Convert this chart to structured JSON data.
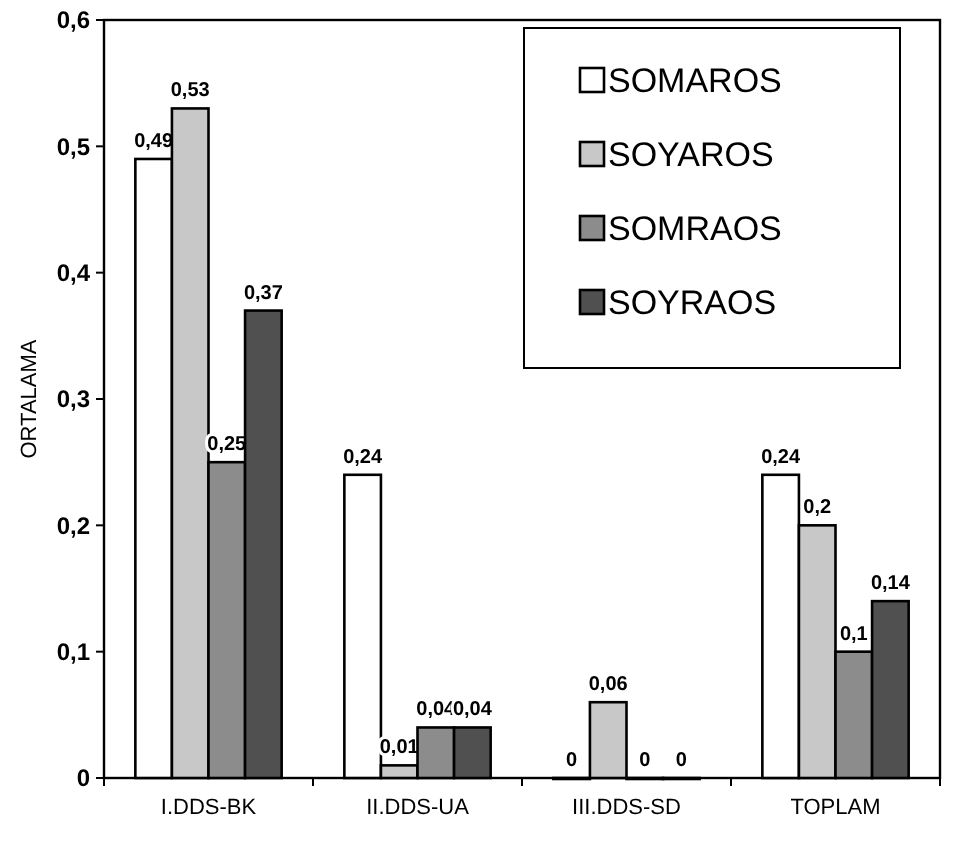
{
  "chart_data": {
    "type": "bar",
    "ylabel": "ORTALAMA",
    "categories": [
      "I.DDS-BK",
      "II.DDS-UA",
      "III.DDS-SD",
      "TOPLAM"
    ],
    "series": [
      {
        "name": "SOMAROS",
        "color": "#ffffff",
        "values": [
          0.49,
          0.24,
          0,
          0.24
        ],
        "value_labels": [
          "0,49",
          "0,24",
          "0",
          "0,24"
        ]
      },
      {
        "name": "SOYAROS",
        "color": "#c8c8c8",
        "values": [
          0.53,
          0.01,
          0.06,
          0.2
        ],
        "value_labels": [
          "0,53",
          "0,01",
          "0,06",
          "0,2"
        ]
      },
      {
        "name": "SOMRAOS",
        "color": "#8c8c8c",
        "values": [
          0.25,
          0.04,
          0,
          0.1
        ],
        "value_labels": [
          "0,25",
          "0,04",
          "0",
          "0,1"
        ]
      },
      {
        "name": "SOYRAOS",
        "color": "#505050",
        "values": [
          0.37,
          0.04,
          0,
          0.14
        ],
        "value_labels": [
          "0,37",
          "0,04",
          "0",
          "0,14"
        ]
      }
    ],
    "ylim": [
      0,
      0.6
    ],
    "yticks": [
      {
        "value": 0,
        "label": "0"
      },
      {
        "value": 0.1,
        "label": "0,1"
      },
      {
        "value": 0.2,
        "label": "0,2"
      },
      {
        "value": 0.3,
        "label": "0,3"
      },
      {
        "value": 0.4,
        "label": "0,4"
      },
      {
        "value": 0.5,
        "label": "0,5"
      },
      {
        "value": 0.6,
        "label": "0,6"
      }
    ],
    "legend": "top right"
  }
}
